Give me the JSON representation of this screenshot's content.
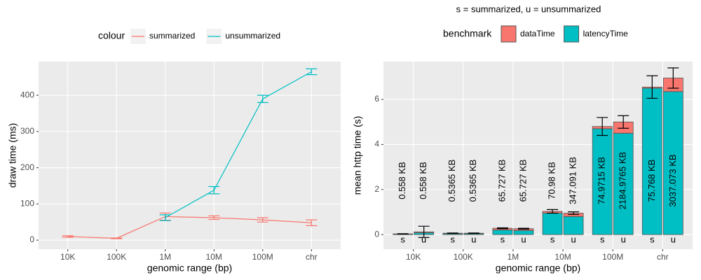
{
  "chart_data": [
    {
      "type": "line",
      "xlabel": "genomic range (bp)",
      "ylabel": "draw time (ms)",
      "legend_title": "colour",
      "legend": "top",
      "categories": [
        "10K",
        "100K",
        "1M",
        "10M",
        "100M",
        "chr"
      ],
      "series": [
        {
          "name": "summarized",
          "color": "#f8766d",
          "values": [
            10,
            5,
            65,
            62,
            56,
            48
          ],
          "errors": [
            2,
            1,
            10,
            5,
            6,
            8
          ]
        },
        {
          "name": "unsummarized",
          "color": "#00bfc4",
          "values": [
            null,
            null,
            62,
            138,
            390,
            465
          ],
          "errors": [
            null,
            null,
            8,
            10,
            10,
            8
          ]
        }
      ],
      "ylim": [
        -25,
        493
      ],
      "yticks": [
        0,
        100,
        200,
        300,
        400
      ],
      "grid": true
    },
    {
      "type": "stacked_bar",
      "subtitle": "s = summarized, u = unsummarized",
      "xlabel": "genomic range (bp)",
      "ylabel": "mean http time (s)",
      "legend_title": "benchmark",
      "legend": "top",
      "categories": [
        "10K",
        "100K",
        "1M",
        "10M",
        "100M",
        "chr"
      ],
      "subgroups": [
        "s",
        "u"
      ],
      "series": [
        {
          "name": "latencyTime",
          "color": "#00bfc4",
          "values": [
            [
              0.02,
              0.08
            ],
            [
              0.04,
              0.04
            ],
            [
              0.2,
              0.18
            ],
            [
              0.95,
              0.8
            ],
            [
              4.7,
              4.5
            ],
            [
              6.5,
              6.35
            ]
          ]
        },
        {
          "name": "dataTime",
          "color": "#f8766d",
          "values": [
            [
              0.01,
              0.04
            ],
            [
              0.02,
              0.02
            ],
            [
              0.08,
              0.08
            ],
            [
              0.08,
              0.15
            ],
            [
              0.1,
              0.5
            ],
            [
              0.05,
              0.6
            ]
          ]
        }
      ],
      "errors": [
        [
          0.01,
          0.25
        ],
        [
          0.01,
          0.01
        ],
        [
          0.02,
          0.02
        ],
        [
          0.08,
          0.06
        ],
        [
          0.4,
          0.28
        ],
        [
          0.5,
          0.45
        ]
      ],
      "value_labels": [
        [
          "0.558 KB",
          "0.558 KB"
        ],
        [
          "0.5365 KB",
          "0.5365 KB"
        ],
        [
          "65.727 KB",
          "65.727 KB"
        ],
        [
          "70.98 KB",
          "347.091 KB"
        ],
        [
          "74.9715 KB",
          "2184.9765 KB"
        ],
        [
          "75.768 KB",
          "3037.073 KB"
        ]
      ],
      "ylim": [
        -0.65,
        7.68
      ],
      "yticks": [
        0,
        2,
        4,
        6
      ],
      "grid": true
    }
  ]
}
